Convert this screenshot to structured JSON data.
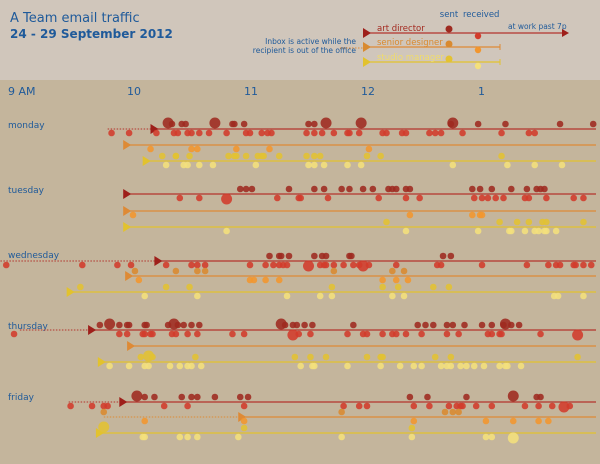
{
  "chart_data": {
    "type": "timeline",
    "title": "A Team email traffic",
    "subtitle": "24 - 29 September 2012",
    "x_unit": "minutes after 9 AM",
    "ticks": [
      {
        "label": "9 AM",
        "m": 0
      },
      {
        "label": "10",
        "m": 60
      },
      {
        "label": "11",
        "m": 120
      },
      {
        "label": "12",
        "m": 180
      },
      {
        "label": "1",
        "m": 240
      }
    ],
    "legend": {
      "sent": "sent",
      "received": "received",
      "late": "at work past 7p",
      "note_line1": "Inbox is active while the",
      "note_line2": "recipient is out of the office",
      "roles": [
        "art director",
        "senior designer",
        "studio manager"
      ]
    },
    "colors": {
      "art director": {
        "line": "#b3342c",
        "sent": "#9e2a20",
        "received": "#d23b2b"
      },
      "senior designer": {
        "line": "#de8a35",
        "sent": "#d98a30",
        "received": "#f2962e"
      },
      "studio manager": {
        "line": "#e2c22e",
        "sent": "#e3c232",
        "received": "#f4e07c"
      }
    },
    "days": [
      {
        "name": "monday",
        "rows": [
          {
            "role": "art director",
            "start": 70,
            "dotted_from": 47,
            "sent": [
              78,
              80,
              85,
              87,
              102,
              111,
              112,
              117,
              150,
              153,
              159,
              177,
              223,
              224,
              237,
              251,
              279,
              296
            ],
            "sent_large": [
              78,
              102,
              159,
              177,
              224
            ],
            "received": [
              49,
              58,
              72,
              81,
              83,
              88,
              90,
              94,
              99,
              108,
              118,
              120,
              126,
              129,
              131,
              149,
              153,
              157,
              163,
              170,
              171,
              176,
              188,
              190,
              198,
              200,
              212,
              215,
              218,
              229,
              249,
              263,
              266
            ],
            "received_large": []
          },
          {
            "role": "senior designer",
            "start": 56,
            "sent": [],
            "sent_large": [],
            "received": [
              69,
              90,
              93,
              113,
              130,
              181
            ],
            "received_large": []
          },
          {
            "role": "studio manager",
            "start": 66,
            "sent": [
              75,
              82,
              82,
              89,
              109,
              112,
              113,
              118,
              124,
              126,
              127,
              135,
              149,
              153,
              156,
              180,
              187,
              249
            ],
            "sent_large": [],
            "received": [
              77,
              86,
              88,
              94,
              101,
              123,
              150,
              153,
              158,
              170,
              177,
              224,
              252,
              266,
              280
            ],
            "received_large": []
          }
        ]
      },
      {
        "name": "tuesday",
        "rows": [
          {
            "role": "art director",
            "start": 56,
            "sent": [
              115,
              118,
              121,
              140,
              153,
              158,
              167,
              171,
              178,
              183,
              191,
              193,
              195,
              200,
              202,
              234,
              238,
              244,
              254,
              262,
              267,
              269,
              271
            ],
            "sent_large": [],
            "received": [
              84,
              94,
              108,
              134,
              145,
              146,
              160,
              186,
              200,
              207,
              235,
              239,
              242,
              246,
              250,
              261,
              263,
              272,
              286,
              291
            ],
            "received_large": [
              108
            ]
          },
          {
            "role": "senior designer",
            "start": 56,
            "sent": [],
            "sent_large": [],
            "received": [
              60,
              202,
              234,
              238,
              239
            ],
            "received_large": []
          },
          {
            "role": "studio manager",
            "start": 56,
            "sent": [
              190,
              248,
              257,
              263,
              270,
              272,
              291
            ],
            "sent_large": [],
            "received": [
              108,
              200,
              237,
              253,
              254,
              261,
              266,
              268,
              271,
              272,
              277
            ],
            "received_large": []
          }
        ]
      },
      {
        "name": "wednesday",
        "rows": [
          {
            "role": "art director",
            "start": 72,
            "dotted_from": -8,
            "sent": [
              130,
              135,
              136,
              140,
              153,
              157,
              159,
              171,
              172,
              219,
              223
            ],
            "sent_large": [],
            "received": [
              -5,
              34,
              52,
              59,
              77,
              90,
              93,
              97,
              120,
              128,
              132,
              135,
              137,
              139,
              150,
              156,
              158,
              159,
              163,
              168,
              173,
              176,
              178,
              181,
              195,
              216,
              218,
              239,
              262,
              273,
              277,
              279,
              286,
              287,
              291,
              295
            ],
            "received_large": [
              150,
              178
            ]
          },
          {
            "role": "senior designer",
            "start": 57,
            "sent": [
              61,
              82,
              93,
              97,
              163,
              193,
              199
            ],
            "sent_large": [],
            "received": [
              63,
              120,
              122,
              128,
              135,
              188,
              195,
              201
            ],
            "received_large": []
          },
          {
            "role": "studio manager",
            "start": 27,
            "sent": [
              33,
              77,
              89,
              162,
              188,
              196,
              214,
              222
            ],
            "sent_large": [],
            "received": [
              66,
              93,
              139,
              156,
              162,
              193,
              199,
              276,
              278,
              291
            ],
            "received_large": []
          }
        ]
      },
      {
        "name": "thursday",
        "rows": [
          {
            "role": "art director",
            "start": 38,
            "dotted_from": 2,
            "sent": [
              43,
              48,
              53,
              57,
              58,
              66,
              67,
              78,
              81,
              83,
              86,
              90,
              94,
              136,
              138,
              142,
              144,
              148,
              152,
              173,
              206,
              210,
              214,
              221,
              224,
              230,
              239,
              244,
              250,
              251,
              254,
              258
            ],
            "sent_large": [
              48,
              81,
              136,
              251
            ],
            "received": [
              -1,
              53,
              57,
              65,
              66,
              69,
              70,
              80,
              82,
              88,
              93,
              111,
              117,
              142,
              145,
              151,
              170,
              178,
              180,
              188,
              193,
              195,
              200,
              208,
              221,
              227,
              242,
              244,
              248,
              249,
              269,
              288
            ],
            "received_large": [
              142,
              288
            ]
          },
          {
            "role": "senior designer",
            "start": 58,
            "sent": [],
            "sent_large": [],
            "received": [],
            "received_large": []
          },
          {
            "role": "studio manager",
            "start": 43,
            "sent": [
              64,
              68,
              70,
              92,
              143,
              151,
              159,
              180,
              187,
              188,
              215,
              223,
              288
            ],
            "sent_large": [
              68
            ],
            "received": [
              48,
              58,
              66,
              68,
              79,
              84,
              88,
              90,
              95,
              146,
              152,
              153,
              170,
              187,
              197,
              204,
              208,
              218,
              221,
              223,
              228,
              231,
              235,
              240,
              248,
              251,
              252,
              259
            ],
            "received_large": []
          }
        ]
      },
      {
        "name": "friday",
        "rows": [
          {
            "role": "art director",
            "start": 54,
            "dotted_from": 27,
            "sent": [
              62,
              66,
              71,
              85,
              90,
              93,
              102,
              115,
              119,
              202,
              211,
              231,
              255,
              267,
              269
            ],
            "sent_large": [
              62,
              255
            ],
            "received": [
              28,
              39,
              45,
              47,
              76,
              88,
              117,
              168,
              176,
              180,
              204,
              212,
              222,
              226,
              228,
              229,
              236,
              244,
              261,
              268,
              275,
              281,
              284
            ],
            "received_large": [
              281
            ]
          },
          {
            "role": "senior designer",
            "start": 115,
            "dotted_from": 45,
            "sent": [
              45,
              167,
              220,
              224,
              227
            ],
            "sent_large": [],
            "received": [
              66,
              117,
              204,
              241,
              255,
              268,
              273
            ],
            "received_large": []
          },
          {
            "role": "studio manager",
            "start": 42,
            "sent": [
              45,
              117,
              203
            ],
            "sent_large": [
              45
            ],
            "received": [
              65,
              66,
              84,
              88,
              93,
              114,
              167,
              203,
              241,
              244,
              255
            ],
            "received_large": [
              255
            ]
          }
        ]
      }
    ]
  }
}
